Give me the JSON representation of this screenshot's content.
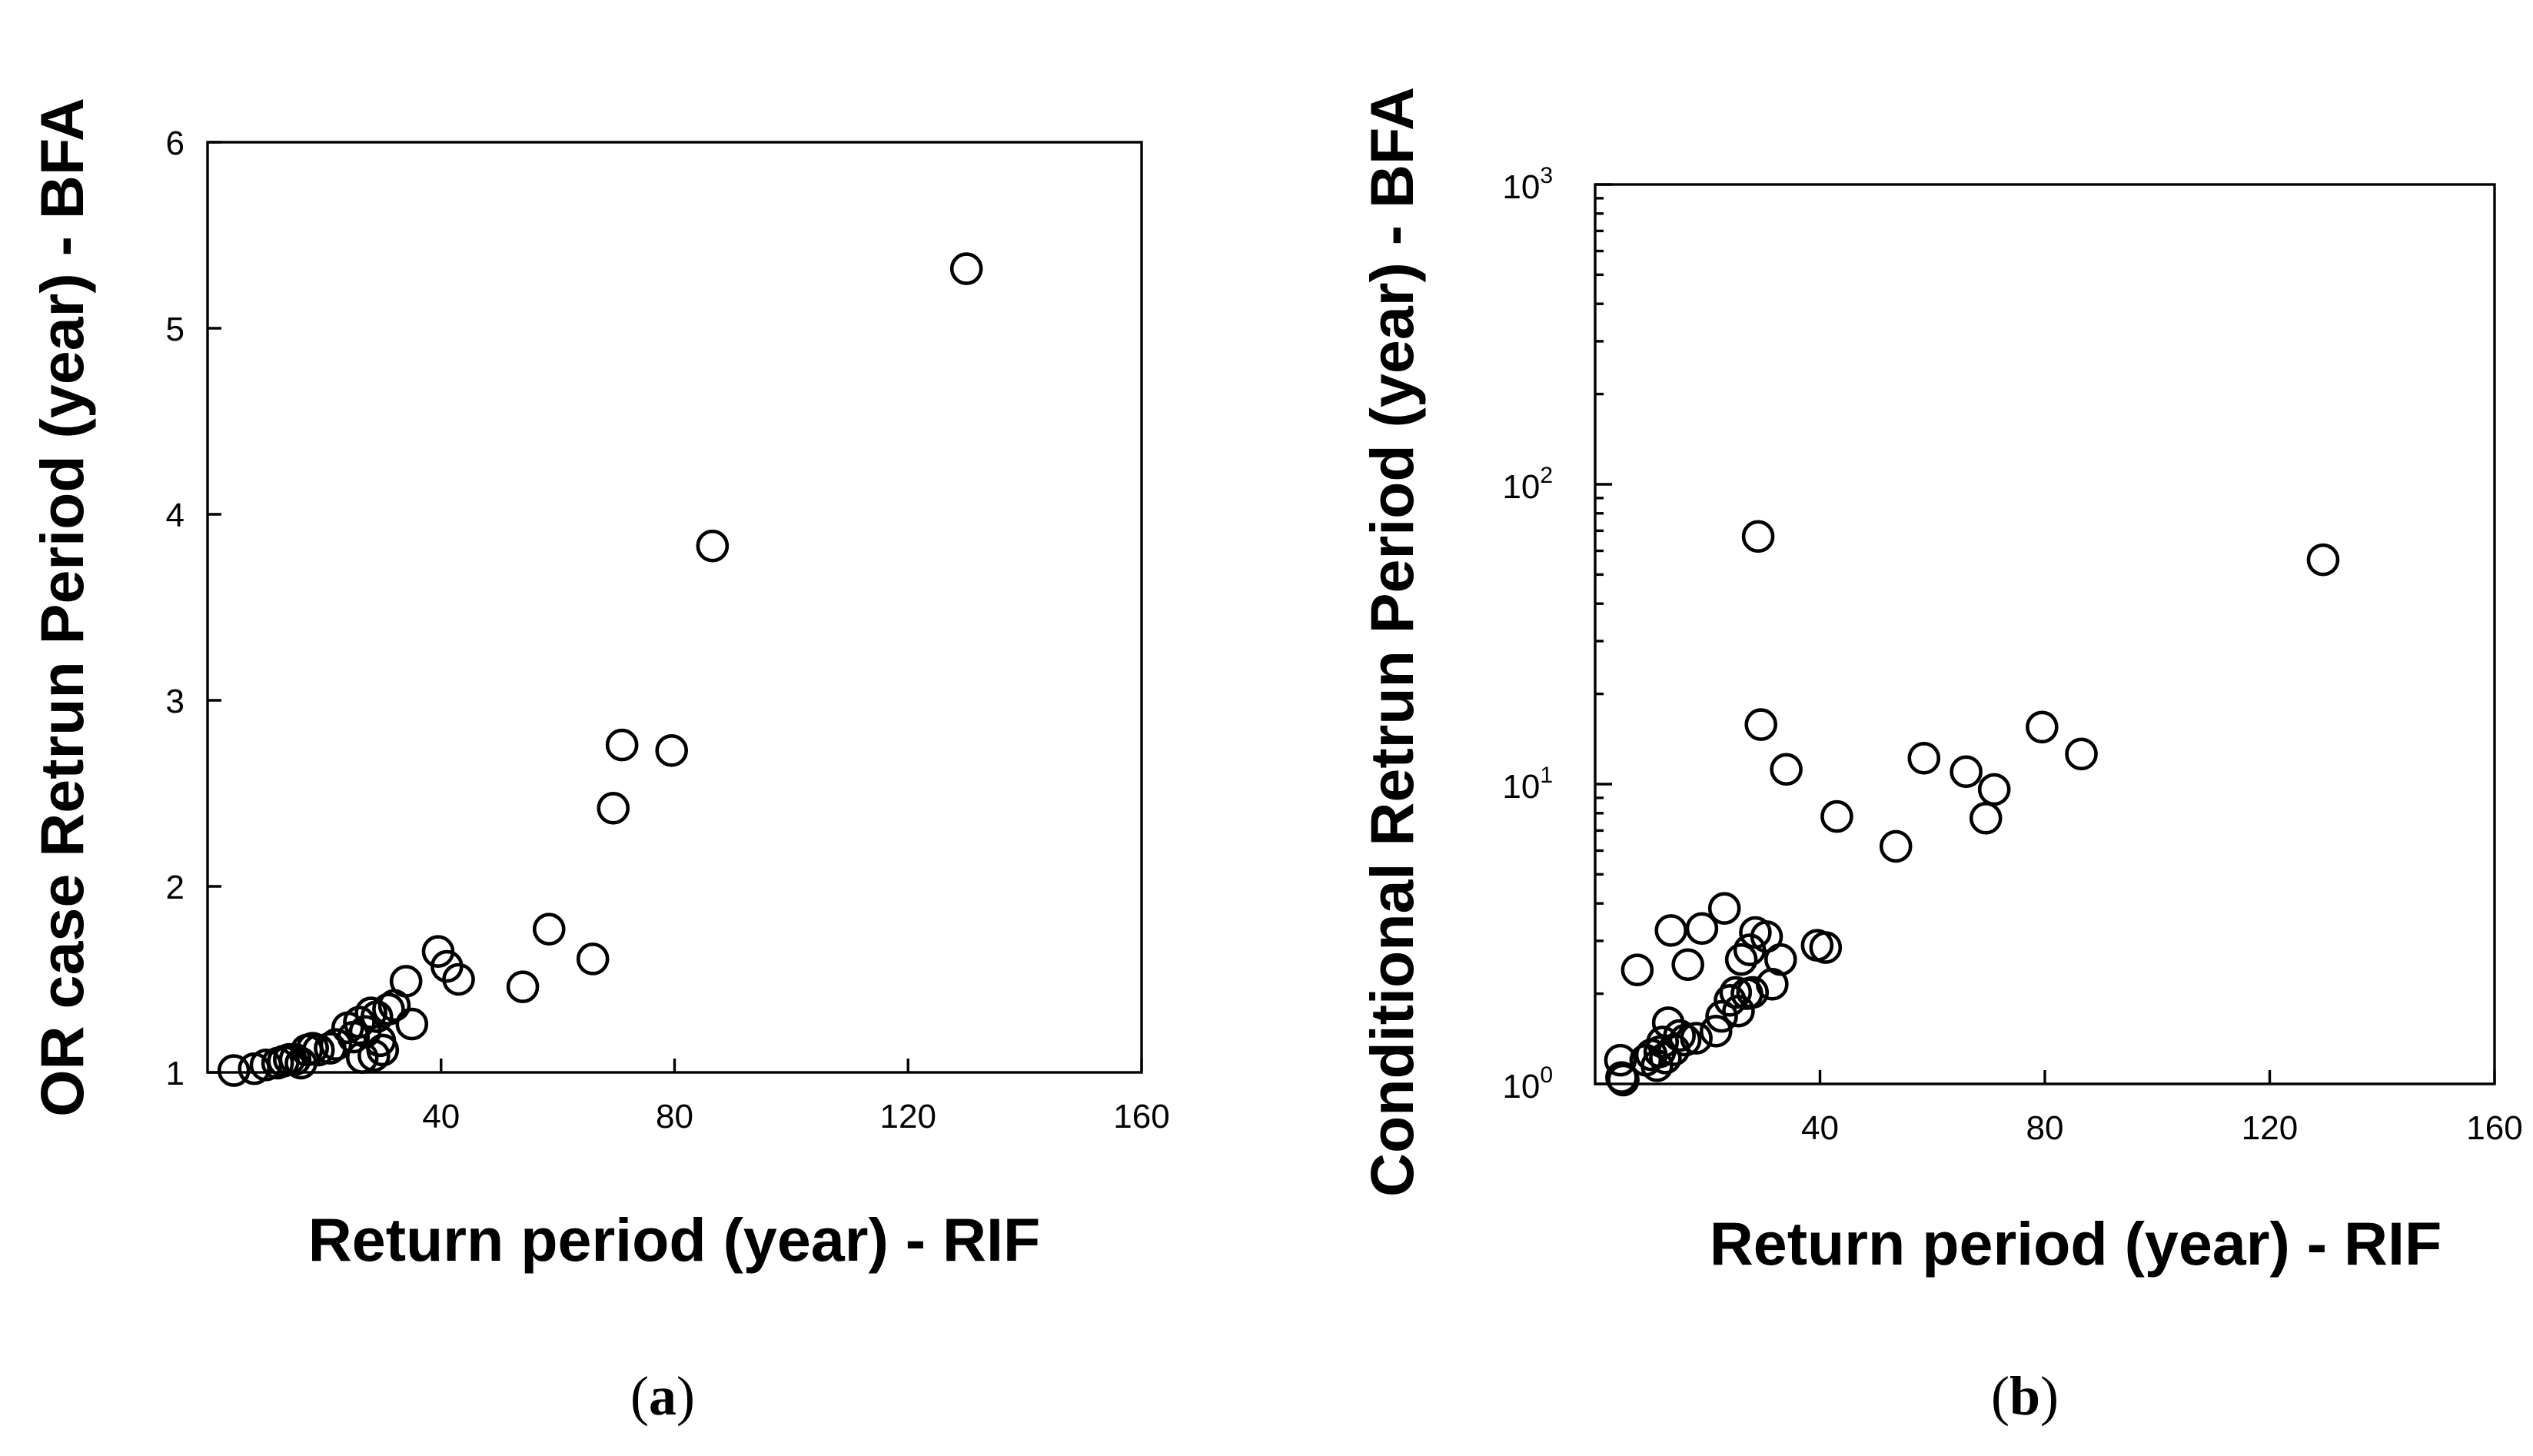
{
  "chart_data": [
    {
      "type": "scatter",
      "panel_label": "a",
      "title": "",
      "xlabel": "Return period (year) - RIF",
      "ylabel": "OR case Retrun Period (year) - BFA",
      "xlim": [
        0,
        160
      ],
      "ylim": [
        1,
        6
      ],
      "yscale": "linear",
      "x_ticks": [
        40,
        80,
        120,
        160
      ],
      "y_ticks": [
        1,
        2,
        3,
        4,
        5,
        6
      ],
      "grid": false,
      "legend": "none",
      "marker": "open-circle",
      "points": [
        {
          "x": 4.5,
          "y": 1.01
        },
        {
          "x": 8,
          "y": 1.02
        },
        {
          "x": 10,
          "y": 1.04
        },
        {
          "x": 12,
          "y": 1.05
        },
        {
          "x": 13,
          "y": 1.06
        },
        {
          "x": 14,
          "y": 1.07
        },
        {
          "x": 15,
          "y": 1.07
        },
        {
          "x": 16,
          "y": 1.05
        },
        {
          "x": 17,
          "y": 1.12
        },
        {
          "x": 18,
          "y": 1.13
        },
        {
          "x": 19,
          "y": 1.12
        },
        {
          "x": 21,
          "y": 1.13
        },
        {
          "x": 22,
          "y": 1.15
        },
        {
          "x": 24,
          "y": 1.24
        },
        {
          "x": 25,
          "y": 1.19
        },
        {
          "x": 26,
          "y": 1.27
        },
        {
          "x": 26.5,
          "y": 1.08
        },
        {
          "x": 27,
          "y": 1.22
        },
        {
          "x": 28,
          "y": 1.32
        },
        {
          "x": 28.5,
          "y": 1.09
        },
        {
          "x": 29,
          "y": 1.3
        },
        {
          "x": 29.5,
          "y": 1.17
        },
        {
          "x": 30,
          "y": 1.12
        },
        {
          "x": 31,
          "y": 1.34
        },
        {
          "x": 32,
          "y": 1.36
        },
        {
          "x": 34,
          "y": 1.49
        },
        {
          "x": 35,
          "y": 1.26
        },
        {
          "x": 39.5,
          "y": 1.65
        },
        {
          "x": 41,
          "y": 1.57
        },
        {
          "x": 43,
          "y": 1.5
        },
        {
          "x": 54,
          "y": 1.46
        },
        {
          "x": 58.5,
          "y": 1.77
        },
        {
          "x": 66,
          "y": 1.61
        },
        {
          "x": 69.5,
          "y": 2.42
        },
        {
          "x": 71,
          "y": 2.76
        },
        {
          "x": 79.5,
          "y": 2.73
        },
        {
          "x": 86.5,
          "y": 3.83
        },
        {
          "x": 130,
          "y": 5.32
        }
      ]
    },
    {
      "type": "scatter",
      "panel_label": "b",
      "title": "",
      "xlabel": "Return period (year) - RIF",
      "ylabel": "Conditional Retrun Period (year) - BFA",
      "xlim": [
        0,
        160
      ],
      "ylim": [
        1,
        1000
      ],
      "yscale": "log",
      "x_ticks": [
        40,
        80,
        120,
        160
      ],
      "y_ticks": [
        {
          "value": 1,
          "base": "10",
          "exp": "0"
        },
        {
          "value": 10,
          "base": "10",
          "exp": "1"
        },
        {
          "value": 100,
          "base": "10",
          "exp": "2"
        },
        {
          "value": 1000,
          "base": "10",
          "exp": "3"
        }
      ],
      "grid": false,
      "legend": "none",
      "marker": "open-circle",
      "points": [
        {
          "x": 4.5,
          "y": 1.2
        },
        {
          "x": 4.7,
          "y": 1.05
        },
        {
          "x": 5,
          "y": 1.03
        },
        {
          "x": 7.5,
          "y": 2.4
        },
        {
          "x": 9,
          "y": 1.2
        },
        {
          "x": 10,
          "y": 1.25
        },
        {
          "x": 11,
          "y": 1.15
        },
        {
          "x": 11.5,
          "y": 1.28
        },
        {
          "x": 12,
          "y": 1.38
        },
        {
          "x": 12.5,
          "y": 1.22
        },
        {
          "x": 13,
          "y": 1.6
        },
        {
          "x": 13.5,
          "y": 3.25
        },
        {
          "x": 14,
          "y": 1.3
        },
        {
          "x": 15,
          "y": 1.45
        },
        {
          "x": 16,
          "y": 1.4
        },
        {
          "x": 16.5,
          "y": 2.5
        },
        {
          "x": 18,
          "y": 1.42
        },
        {
          "x": 19,
          "y": 3.3
        },
        {
          "x": 21.5,
          "y": 1.5
        },
        {
          "x": 22.5,
          "y": 1.68
        },
        {
          "x": 23,
          "y": 3.85
        },
        {
          "x": 24,
          "y": 1.9
        },
        {
          "x": 25,
          "y": 2.02
        },
        {
          "x": 25.5,
          "y": 1.75
        },
        {
          "x": 26,
          "y": 2.6
        },
        {
          "x": 27,
          "y": 2.0
        },
        {
          "x": 27.5,
          "y": 2.8
        },
        {
          "x": 28,
          "y": 2.02
        },
        {
          "x": 28.5,
          "y": 3.2
        },
        {
          "x": 29,
          "y": 67
        },
        {
          "x": 29.5,
          "y": 15.8
        },
        {
          "x": 30.5,
          "y": 3.1
        },
        {
          "x": 31.5,
          "y": 2.15
        },
        {
          "x": 33,
          "y": 2.6
        },
        {
          "x": 34,
          "y": 11.2
        },
        {
          "x": 39.5,
          "y": 2.9
        },
        {
          "x": 41,
          "y": 2.85
        },
        {
          "x": 43,
          "y": 7.8
        },
        {
          "x": 53.5,
          "y": 6.2
        },
        {
          "x": 58.5,
          "y": 12.2
        },
        {
          "x": 66,
          "y": 11.0
        },
        {
          "x": 69.5,
          "y": 7.7
        },
        {
          "x": 71,
          "y": 9.6
        },
        {
          "x": 79.5,
          "y": 15.5
        },
        {
          "x": 86.5,
          "y": 12.6
        },
        {
          "x": 129.5,
          "y": 56
        }
      ]
    }
  ]
}
